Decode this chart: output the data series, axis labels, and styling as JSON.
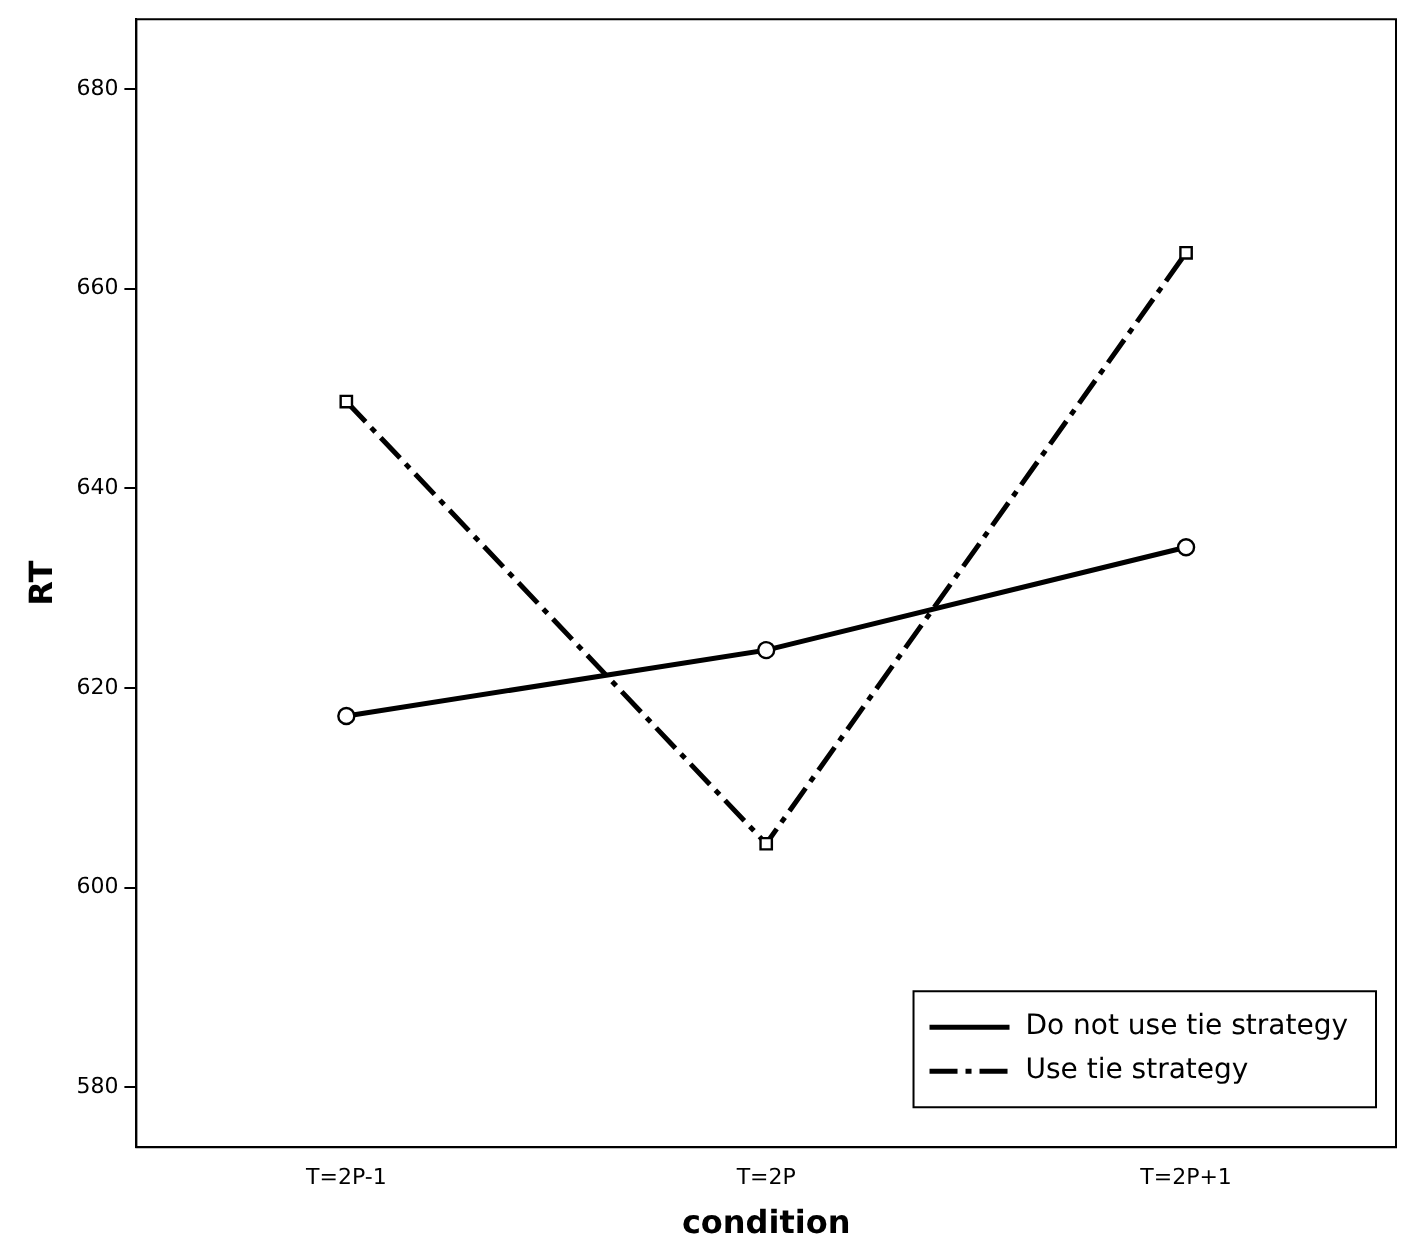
{
  "chart_data": {
    "type": "line",
    "xlabel": "condition",
    "ylabel": "RT",
    "categories": [
      "T=2P-1",
      "T=2P",
      "T=2P+1"
    ],
    "series": [
      {
        "name": "Do not use tie strategy",
        "color": "#000000",
        "values": [
          617.2,
          623.8,
          634.1
        ],
        "marker": "circle",
        "line_style": "solid"
      },
      {
        "name": "Use tie strategy",
        "color": "#000000",
        "values": [
          648.7,
          604.4,
          663.6
        ],
        "marker": "square",
        "line_style": "dashed"
      }
    ],
    "ylim": [
      574,
      687
    ],
    "yticks": [
      580,
      600,
      620,
      640,
      660,
      680
    ],
    "grid": false,
    "legend": "bottom right"
  }
}
